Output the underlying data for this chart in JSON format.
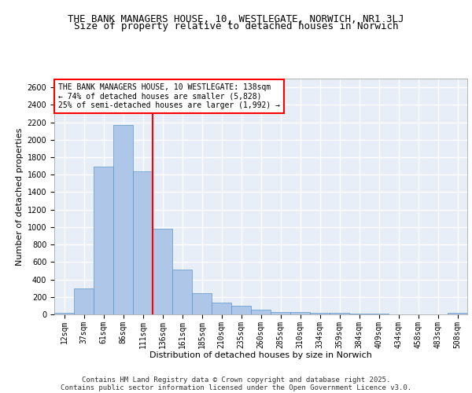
{
  "title_line1": "THE BANK MANAGERS HOUSE, 10, WESTLEGATE, NORWICH, NR1 3LJ",
  "title_line2": "Size of property relative to detached houses in Norwich",
  "xlabel": "Distribution of detached houses by size in Norwich",
  "ylabel": "Number of detached properties",
  "categories": [
    "12sqm",
    "37sqm",
    "61sqm",
    "86sqm",
    "111sqm",
    "136sqm",
    "161sqm",
    "185sqm",
    "210sqm",
    "235sqm",
    "260sqm",
    "285sqm",
    "310sqm",
    "334sqm",
    "359sqm",
    "384sqm",
    "409sqm",
    "434sqm",
    "458sqm",
    "483sqm",
    "508sqm"
  ],
  "values": [
    20,
    300,
    1690,
    2170,
    1640,
    980,
    510,
    245,
    135,
    100,
    50,
    30,
    25,
    20,
    15,
    10,
    5,
    3,
    2,
    1,
    20
  ],
  "bar_color": "#aec6e8",
  "bar_edge_color": "#5a96c8",
  "vline_color": "red",
  "vline_pos": 4.5,
  "annotation_text": "THE BANK MANAGERS HOUSE, 10 WESTLEGATE: 138sqm\n← 74% of detached houses are smaller (5,828)\n25% of semi-detached houses are larger (1,992) →",
  "annotation_box_color": "white",
  "annotation_box_edge": "red",
  "ylim": [
    0,
    2700
  ],
  "yticks": [
    0,
    200,
    400,
    600,
    800,
    1000,
    1200,
    1400,
    1600,
    1800,
    2000,
    2200,
    2400,
    2600
  ],
  "footer_line1": "Contains HM Land Registry data © Crown copyright and database right 2025.",
  "footer_line2": "Contains public sector information licensed under the Open Government Licence v3.0.",
  "background_color": "#e8eef8",
  "grid_color": "#ffffff",
  "title_fontsize": 9,
  "subtitle_fontsize": 9,
  "axis_label_fontsize": 8,
  "tick_fontsize": 7,
  "annotation_fontsize": 7,
  "footer_fontsize": 6.5
}
